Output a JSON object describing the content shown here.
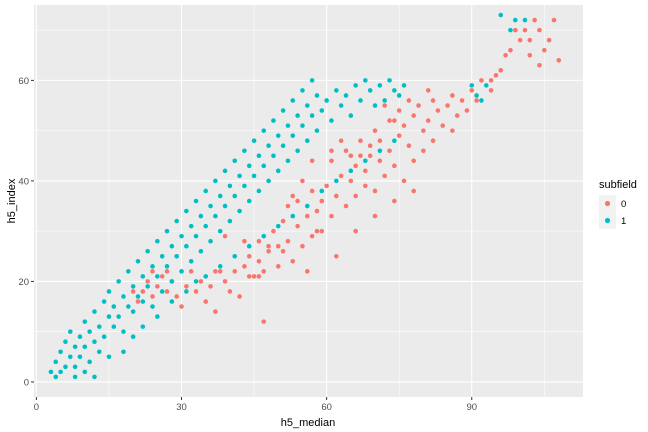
{
  "chart_data": {
    "type": "scatter",
    "title": "",
    "xlabel": "h5_median",
    "ylabel": "h5_index",
    "xlim": [
      -0.5,
      113
    ],
    "ylim": [
      -3,
      75
    ],
    "x_ticks": [
      0,
      30,
      60,
      90
    ],
    "x_tick_labels": [
      "0",
      "30",
      "60",
      "90"
    ],
    "y_ticks": [
      0,
      20,
      40,
      60
    ],
    "y_tick_labels": [
      "0",
      "20",
      "40",
      "60"
    ],
    "grid": true,
    "background_color": "#ebebeb",
    "grid_color": "#ffffff",
    "legend": {
      "title": "subfield",
      "position": "right"
    },
    "series": [
      {
        "name": "0",
        "color": "#f8766d",
        "points": [
          [
            20,
            18
          ],
          [
            21,
            16
          ],
          [
            22,
            18
          ],
          [
            23,
            20
          ],
          [
            24,
            22
          ],
          [
            24,
            17
          ],
          [
            25,
            19
          ],
          [
            26,
            21
          ],
          [
            27,
            18
          ],
          [
            27,
            22
          ],
          [
            28,
            20
          ],
          [
            29,
            17
          ],
          [
            30,
            15
          ],
          [
            31,
            19
          ],
          [
            32,
            22
          ],
          [
            33,
            18
          ],
          [
            34,
            20
          ],
          [
            35,
            16
          ],
          [
            36,
            19
          ],
          [
            37,
            14
          ],
          [
            38,
            22
          ],
          [
            39,
            20
          ],
          [
            40,
            18
          ],
          [
            41,
            22
          ],
          [
            42,
            17
          ],
          [
            43,
            23
          ],
          [
            44,
            25
          ],
          [
            45,
            21
          ],
          [
            46,
            24
          ],
          [
            46,
            28
          ],
          [
            47,
            22
          ],
          [
            48,
            26
          ],
          [
            49,
            30
          ],
          [
            50,
            23
          ],
          [
            50,
            27
          ],
          [
            51,
            32
          ],
          [
            52,
            28
          ],
          [
            52,
            35
          ],
          [
            53,
            24
          ],
          [
            54,
            31
          ],
          [
            54,
            36
          ],
          [
            55,
            27
          ],
          [
            56,
            33
          ],
          [
            57,
            29
          ],
          [
            57,
            38
          ],
          [
            58,
            34
          ],
          [
            59,
            30
          ],
          [
            59,
            36
          ],
          [
            60,
            39
          ],
          [
            61,
            33
          ],
          [
            61,
            44
          ],
          [
            62,
            37
          ],
          [
            63,
            41
          ],
          [
            64,
            35
          ],
          [
            64,
            46
          ],
          [
            65,
            40
          ],
          [
            66,
            43
          ],
          [
            66,
            37
          ],
          [
            67,
            48
          ],
          [
            68,
            42
          ],
          [
            68,
            39
          ],
          [
            69,
            45
          ],
          [
            70,
            38
          ],
          [
            70,
            50
          ],
          [
            71,
            44
          ],
          [
            71,
            48
          ],
          [
            72,
            41
          ],
          [
            73,
            52
          ],
          [
            73,
            46
          ],
          [
            74,
            43
          ],
          [
            75,
            54
          ],
          [
            75,
            49
          ],
          [
            76,
            40
          ],
          [
            76,
            51
          ],
          [
            77,
            47
          ],
          [
            78,
            53
          ],
          [
            78,
            44
          ],
          [
            79,
            55
          ],
          [
            80,
            50
          ],
          [
            80,
            46
          ],
          [
            81,
            52
          ],
          [
            82,
            56
          ],
          [
            82,
            48
          ],
          [
            83,
            54
          ],
          [
            84,
            51
          ],
          [
            85,
            55
          ],
          [
            86,
            50
          ],
          [
            86,
            57
          ],
          [
            87,
            53
          ],
          [
            88,
            56
          ],
          [
            89,
            54
          ],
          [
            90,
            58
          ],
          [
            91,
            56
          ],
          [
            92,
            60
          ],
          [
            94,
            58
          ],
          [
            96,
            62
          ],
          [
            100,
            68
          ],
          [
            101,
            70
          ],
          [
            102,
            68
          ],
          [
            103,
            72
          ],
          [
            104,
            70
          ],
          [
            105,
            66
          ],
          [
            106,
            68
          ],
          [
            107,
            72
          ],
          [
            108,
            64
          ],
          [
            102,
            65
          ],
          [
            104,
            63
          ],
          [
            97,
            65
          ],
          [
            94,
            60
          ],
          [
            98,
            66
          ],
          [
            99,
            70
          ],
          [
            95,
            61
          ],
          [
            44,
            21
          ],
          [
            46,
            21
          ],
          [
            48,
            27
          ],
          [
            56,
            22
          ],
          [
            58,
            30
          ],
          [
            62,
            25
          ],
          [
            66,
            30
          ],
          [
            70,
            33
          ],
          [
            74,
            36
          ],
          [
            78,
            38
          ],
          [
            47,
            12
          ],
          [
            37,
            22
          ],
          [
            39,
            29
          ],
          [
            43,
            28
          ],
          [
            51,
            26
          ],
          [
            53,
            37
          ],
          [
            55,
            40
          ],
          [
            57,
            44
          ],
          [
            61,
            46
          ],
          [
            63,
            48
          ],
          [
            65,
            45
          ],
          [
            67,
            45
          ],
          [
            69,
            47
          ],
          [
            72,
            55
          ],
          [
            74,
            52
          ],
          [
            77,
            56
          ],
          [
            81,
            58
          ]
        ]
      },
      {
        "name": "1",
        "color": "#00bfc4",
        "points": [
          [
            3,
            2
          ],
          [
            4,
            4
          ],
          [
            5,
            6
          ],
          [
            6,
            3
          ],
          [
            6,
            8
          ],
          [
            7,
            5
          ],
          [
            7,
            10
          ],
          [
            8,
            7
          ],
          [
            8,
            3
          ],
          [
            9,
            9
          ],
          [
            9,
            5
          ],
          [
            10,
            12
          ],
          [
            10,
            7
          ],
          [
            11,
            4
          ],
          [
            11,
            10
          ],
          [
            12,
            8
          ],
          [
            12,
            14
          ],
          [
            13,
            11
          ],
          [
            13,
            6
          ],
          [
            14,
            16
          ],
          [
            14,
            9
          ],
          [
            15,
            13
          ],
          [
            15,
            18
          ],
          [
            16,
            11
          ],
          [
            16,
            15
          ],
          [
            17,
            20
          ],
          [
            17,
            13
          ],
          [
            18,
            17
          ],
          [
            18,
            10
          ],
          [
            19,
            22
          ],
          [
            19,
            15
          ],
          [
            20,
            19
          ],
          [
            20,
            14
          ],
          [
            21,
            24
          ],
          [
            21,
            17
          ],
          [
            22,
            21
          ],
          [
            22,
            16
          ],
          [
            23,
            26
          ],
          [
            23,
            19
          ],
          [
            24,
            23
          ],
          [
            24,
            15
          ],
          [
            25,
            28
          ],
          [
            25,
            21
          ],
          [
            26,
            25
          ],
          [
            26,
            18
          ],
          [
            27,
            30
          ],
          [
            27,
            23
          ],
          [
            28,
            27
          ],
          [
            28,
            20
          ],
          [
            29,
            32
          ],
          [
            29,
            25
          ],
          [
            30,
            29
          ],
          [
            30,
            22
          ],
          [
            31,
            34
          ],
          [
            31,
            27
          ],
          [
            32,
            31
          ],
          [
            32,
            24
          ],
          [
            33,
            36
          ],
          [
            33,
            29
          ],
          [
            34,
            33
          ],
          [
            34,
            26
          ],
          [
            35,
            38
          ],
          [
            35,
            31
          ],
          [
            36,
            35
          ],
          [
            36,
            28
          ],
          [
            37,
            40
          ],
          [
            37,
            33
          ],
          [
            38,
            37
          ],
          [
            38,
            30
          ],
          [
            39,
            42
          ],
          [
            39,
            35
          ],
          [
            40,
            39
          ],
          [
            40,
            32
          ],
          [
            41,
            44
          ],
          [
            41,
            37
          ],
          [
            42,
            41
          ],
          [
            42,
            34
          ],
          [
            43,
            46
          ],
          [
            43,
            39
          ],
          [
            44,
            43
          ],
          [
            44,
            36
          ],
          [
            45,
            48
          ],
          [
            45,
            41
          ],
          [
            46,
            45
          ],
          [
            46,
            38
          ],
          [
            47,
            50
          ],
          [
            47,
            43
          ],
          [
            48,
            47
          ],
          [
            48,
            40
          ],
          [
            49,
            52
          ],
          [
            49,
            45
          ],
          [
            50,
            49
          ],
          [
            50,
            42
          ],
          [
            51,
            54
          ],
          [
            51,
            47
          ],
          [
            52,
            51
          ],
          [
            52,
            44
          ],
          [
            53,
            56
          ],
          [
            53,
            49
          ],
          [
            54,
            53
          ],
          [
            54,
            46
          ],
          [
            55,
            58
          ],
          [
            55,
            51
          ],
          [
            56,
            55
          ],
          [
            56,
            48
          ],
          [
            57,
            60
          ],
          [
            57,
            53
          ],
          [
            58,
            57
          ],
          [
            58,
            50
          ],
          [
            59,
            54
          ],
          [
            60,
            56
          ],
          [
            61,
            52
          ],
          [
            62,
            58
          ],
          [
            63,
            55
          ],
          [
            64,
            57
          ],
          [
            65,
            53
          ],
          [
            66,
            59
          ],
          [
            67,
            56
          ],
          [
            68,
            60
          ],
          [
            69,
            58
          ],
          [
            70,
            55
          ],
          [
            71,
            59
          ],
          [
            72,
            56
          ],
          [
            73,
            60
          ],
          [
            74,
            58
          ],
          [
            75,
            57
          ],
          [
            76,
            59
          ],
          [
            90,
            59
          ],
          [
            91,
            57
          ],
          [
            93,
            59
          ],
          [
            92,
            56
          ],
          [
            96,
            73
          ],
          [
            99,
            72
          ],
          [
            101,
            72
          ],
          [
            98,
            70
          ],
          [
            10,
            2
          ],
          [
            12,
            1
          ],
          [
            8,
            1
          ],
          [
            5,
            2
          ],
          [
            4,
            1
          ],
          [
            15,
            5
          ],
          [
            18,
            6
          ],
          [
            20,
            9
          ],
          [
            22,
            11
          ],
          [
            25,
            13
          ],
          [
            28,
            16
          ],
          [
            31,
            18
          ],
          [
            33,
            20
          ],
          [
            35,
            21
          ],
          [
            38,
            23
          ],
          [
            41,
            25
          ],
          [
            44,
            27
          ],
          [
            47,
            29
          ],
          [
            50,
            31
          ],
          [
            53,
            33
          ],
          [
            56,
            35
          ],
          [
            59,
            38
          ],
          [
            62,
            40
          ],
          [
            65,
            42
          ],
          [
            68,
            44
          ],
          [
            71,
            46
          ],
          [
            74,
            48
          ]
        ]
      }
    ]
  }
}
